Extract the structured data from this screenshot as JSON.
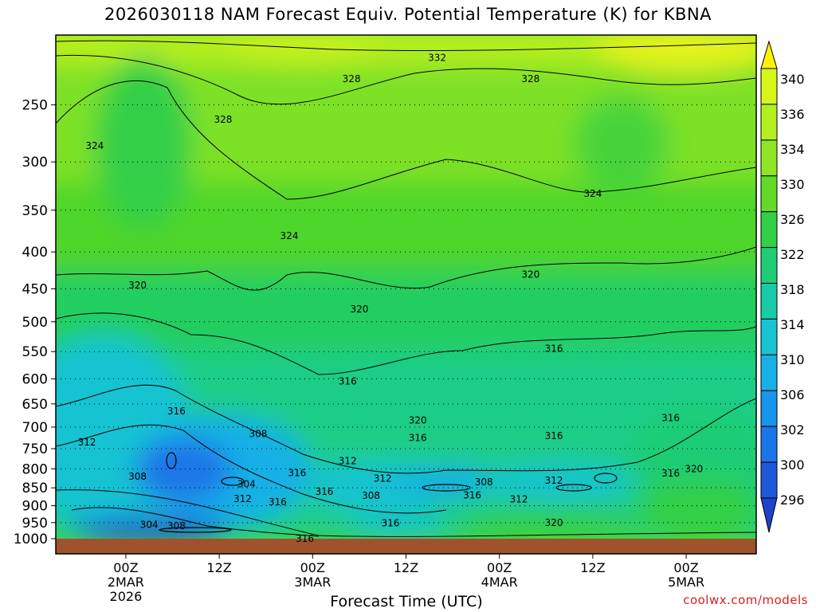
{
  "chart_data": {
    "type": "heatmap",
    "title": "2026030118 NAM Forecast Equiv. Potential Temperature (K) for KBNA",
    "xlabel": "Forecast Time (UTC)",
    "credit": "coolwx.com/models",
    "y_axis": {
      "label": "",
      "scale": "log-pressure",
      "range": [
        1000,
        200
      ],
      "ticks": [
        250,
        300,
        350,
        400,
        450,
        500,
        550,
        600,
        650,
        700,
        750,
        800,
        850,
        900,
        950,
        1000
      ]
    },
    "x_axis": {
      "range": [
        -9,
        81
      ],
      "ticks": [
        {
          "hour": 0,
          "lines": [
            "00Z",
            "2MAR",
            "2026"
          ]
        },
        {
          "hour": 12,
          "lines": [
            "12Z"
          ]
        },
        {
          "hour": 24,
          "lines": [
            "00Z",
            "3MAR"
          ]
        },
        {
          "hour": 36,
          "lines": [
            "12Z"
          ]
        },
        {
          "hour": 48,
          "lines": [
            "00Z",
            "4MAR"
          ]
        },
        {
          "hour": 60,
          "lines": [
            "12Z"
          ]
        },
        {
          "hour": 72,
          "lines": [
            "00Z",
            "5MAR"
          ]
        }
      ]
    },
    "grid": "dotted horizontal lines at pressure ticks",
    "colorbar": {
      "labels": [
        340,
        336,
        334,
        330,
        326,
        322,
        318,
        314,
        310,
        306,
        302,
        300,
        296
      ],
      "colors": [
        "#fff200",
        "#d6f51a",
        "#b4ef1f",
        "#8ee624",
        "#62da28",
        "#30cf46",
        "#1fcd76",
        "#18cba8",
        "#18c3d2",
        "#17b0e6",
        "#1794ec",
        "#1a76e8",
        "#1e58d8",
        "#1f42c8"
      ]
    },
    "contour_labels": [
      {
        "value": "332",
        "hour": 40,
        "pressure": 215
      },
      {
        "value": "328",
        "hour": 29,
        "pressure": 230
      },
      {
        "value": "328",
        "hour": 52,
        "pressure": 230
      },
      {
        "value": "328",
        "hour": 12.5,
        "pressure": 262
      },
      {
        "value": "324",
        "hour": -4,
        "pressure": 285
      },
      {
        "value": "324",
        "hour": 60,
        "pressure": 332
      },
      {
        "value": "324",
        "hour": 21,
        "pressure": 380
      },
      {
        "value": "320",
        "hour": 1.5,
        "pressure": 445
      },
      {
        "value": "320",
        "hour": 52,
        "pressure": 430
      },
      {
        "value": "320",
        "hour": 30,
        "pressure": 480
      },
      {
        "value": "316",
        "hour": 55,
        "pressure": 545
      },
      {
        "value": "316",
        "hour": 28.5,
        "pressure": 605
      },
      {
        "value": "316",
        "hour": 6.5,
        "pressure": 665
      },
      {
        "value": "316",
        "hour": 70,
        "pressure": 680
      },
      {
        "value": "320",
        "hour": 37.5,
        "pressure": 685
      },
      {
        "value": "316",
        "hour": 37.5,
        "pressure": 725
      },
      {
        "value": "316",
        "hour": 55,
        "pressure": 720
      },
      {
        "value": "308",
        "hour": 17,
        "pressure": 715
      },
      {
        "value": "312",
        "hour": 28.5,
        "pressure": 780
      },
      {
        "value": "312",
        "hour": 33,
        "pressure": 825
      },
      {
        "value": "316",
        "hour": 22,
        "pressure": 810
      },
      {
        "value": "312",
        "hour": -5,
        "pressure": 735
      },
      {
        "value": "308",
        "hour": 1.5,
        "pressure": 820
      },
      {
        "value": "304",
        "hour": 15.5,
        "pressure": 840
      },
      {
        "value": "312",
        "hour": 15,
        "pressure": 880
      },
      {
        "value": "316",
        "hour": 19.5,
        "pressure": 890
      },
      {
        "value": "316",
        "hour": 25.5,
        "pressure": 860
      },
      {
        "value": "308",
        "hour": 46,
        "pressure": 835
      },
      {
        "value": "316",
        "hour": 44.5,
        "pressure": 870
      },
      {
        "value": "312",
        "hour": 50.5,
        "pressure": 882
      },
      {
        "value": "312",
        "hour": 55,
        "pressure": 830
      },
      {
        "value": "308",
        "hour": 31.5,
        "pressure": 872
      },
      {
        "value": "316",
        "hour": 70,
        "pressure": 812
      },
      {
        "value": "320",
        "hour": 73,
        "pressure": 800
      },
      {
        "value": "320",
        "hour": 55,
        "pressure": 950
      },
      {
        "value": "316",
        "hour": 34,
        "pressure": 952
      },
      {
        "value": "304",
        "hour": 3,
        "pressure": 957
      },
      {
        "value": "308",
        "hour": 6.5,
        "pressure": 960
      },
      {
        "value": "316",
        "hour": 23,
        "pressure": 1000
      }
    ]
  }
}
